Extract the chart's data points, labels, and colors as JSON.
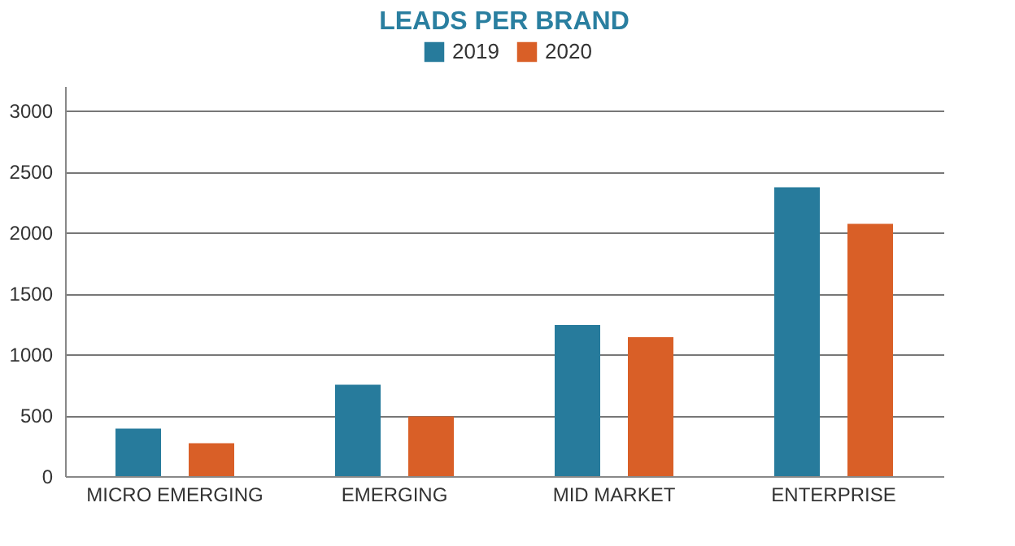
{
  "chart_data": {
    "type": "bar",
    "title": "LEADS PER BRAND",
    "categories": [
      "MICRO EMERGING",
      "EMERGING",
      "MID MARKET",
      "ENTERPRISE"
    ],
    "series": [
      {
        "name": "2019",
        "color": "#277b9c",
        "values": [
          390,
          750,
          1240,
          2370
        ]
      },
      {
        "name": "2020",
        "color": "#d95f27",
        "values": [
          270,
          490,
          1140,
          2070
        ]
      }
    ],
    "ylim": [
      0,
      3200
    ],
    "yticks": [
      0,
      500,
      1000,
      1500,
      2000,
      2500,
      3000
    ],
    "grid": "y",
    "legend": "top"
  }
}
